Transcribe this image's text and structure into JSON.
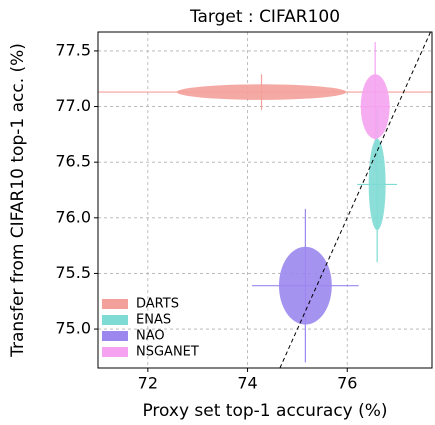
{
  "chart_data": {
    "type": "scatter",
    "title": "Target : CIFAR100",
    "x_label": "Proxy set top-1 accuracy (%)",
    "y_label": "Transfer from CIFAR10 top-1 acc. (%)",
    "xlim": [
      71.0,
      77.7
    ],
    "ylim": [
      74.65,
      77.67
    ],
    "xticks": [
      72,
      74,
      76
    ],
    "yticks": [
      {
        "value": 75,
        "label": "75.0"
      },
      75.5,
      {
        "value": 76,
        "label": "76.0"
      },
      76.5,
      {
        "value": 77,
        "label": "77.0"
      },
      77.5
    ],
    "grid": true,
    "diagonal": true,
    "legend": "lower left",
    "series": [
      {
        "name": "DARTS",
        "color": "#f4a09a",
        "x": 74.28,
        "y": 77.13,
        "x_std": 1.7,
        "y_std": 0.07,
        "x_err": 4.0,
        "y_err": 0.16
      },
      {
        "name": "ENAS",
        "color": "#7fdcd4",
        "x": 76.6,
        "y": 76.3,
        "x_std": 0.17,
        "y_std": 0.41,
        "x_err": 0.4,
        "y_err": 0.7
      },
      {
        "name": "NAO",
        "color": "#9b87ee",
        "x": 75.16,
        "y": 75.39,
        "x_std": 0.53,
        "y_std": 0.35,
        "x_err": 1.07,
        "y_err": 0.69
      },
      {
        "name": "NSGANET",
        "color": "#f5a3f0",
        "x": 76.56,
        "y": 77.0,
        "x_std": 0.29,
        "y_std": 0.29,
        "x_err": 0.3,
        "y_err": 0.58
      }
    ]
  }
}
